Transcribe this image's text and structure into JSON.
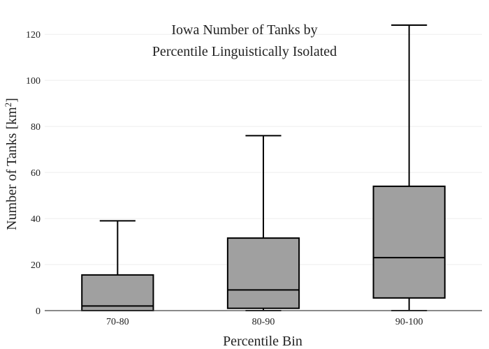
{
  "chart_data": {
    "type": "box",
    "title_lines": [
      "Iowa Number of Tanks by",
      "Percentile Linguistically Isolated"
    ],
    "xlabel": "Percentile Bin",
    "ylabel_main": "Number of Tanks  [km",
    "ylabel_sup": "2",
    "ylabel_close": "]",
    "ylim": [
      0,
      124
    ],
    "yticks": [
      0,
      20,
      40,
      60,
      80,
      100,
      120
    ],
    "grid": true,
    "categories": [
      "70-80",
      "80-90",
      "90-100"
    ],
    "boxes": [
      {
        "category": "70-80",
        "min": 0,
        "q1": 0,
        "median": 2,
        "q3": 15.5,
        "max": 39
      },
      {
        "category": "80-90",
        "min": 0,
        "q1": 1,
        "median": 9,
        "q3": 31.5,
        "max": 76
      },
      {
        "category": "90-100",
        "min": 0,
        "q1": 5.5,
        "median": 23,
        "q3": 54,
        "max": 124
      }
    ],
    "colors": {
      "box_fill": "#a0a0a0",
      "box_stroke": "#000000",
      "grid": "#eeeeee",
      "axis": "#444444"
    }
  }
}
